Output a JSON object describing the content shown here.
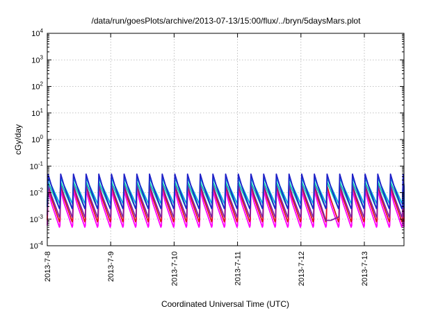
{
  "chart_data": {
    "type": "line",
    "title": "/data/run/goesPlots/archive/2013-07-13/15:00/flux/../bryn/5daysMars.plot",
    "xlabel": "Coordinated Universal Time (UTC)",
    "ylabel": "cGy/day",
    "y_scale": "log",
    "ylim": [
      0.0001,
      10000
    ],
    "y_ticks": [
      {
        "base": "10",
        "exp": "-4",
        "value": 0.0001
      },
      {
        "base": "10",
        "exp": "-3",
        "value": 0.001
      },
      {
        "base": "10",
        "exp": "-2",
        "value": 0.01
      },
      {
        "base": "10",
        "exp": "-1",
        "value": 0.1
      },
      {
        "base": "10",
        "exp": "0",
        "value": 1
      },
      {
        "base": "10",
        "exp": "1",
        "value": 10
      },
      {
        "base": "10",
        "exp": "2",
        "value": 100
      },
      {
        "base": "10",
        "exp": "3",
        "value": 1000
      },
      {
        "base": "10",
        "exp": "4",
        "value": 10000
      }
    ],
    "x_ticks": [
      "2013-7-8",
      "2013-7-9",
      "2013-7-10",
      "2013-7-11",
      "2013-7-12",
      "2013-7-13"
    ],
    "xlim": [
      "2013-07-08T00:00",
      "2013-07-13T15:00"
    ],
    "grid": true,
    "oscillation_period_hours": 4.8,
    "series": [
      {
        "color": "#2020c8",
        "peak": 0.05,
        "trough": 0.0025
      },
      {
        "color": "#00b0e0",
        "peak": 0.035,
        "trough": 0.004
      },
      {
        "color": "#00d0b0",
        "peak": 0.025,
        "trough": 0.0025
      },
      {
        "color": "#8020a0",
        "peak": 0.02,
        "trough": 0.0012
      },
      {
        "color": "#e01020",
        "peak": 0.018,
        "trough": 0.0008
      },
      {
        "color": "#ff00ff",
        "peak": 0.012,
        "trough": 0.0005
      }
    ],
    "anomaly": {
      "x": "2013-07-12T11:00",
      "value": 0.0009
    }
  }
}
